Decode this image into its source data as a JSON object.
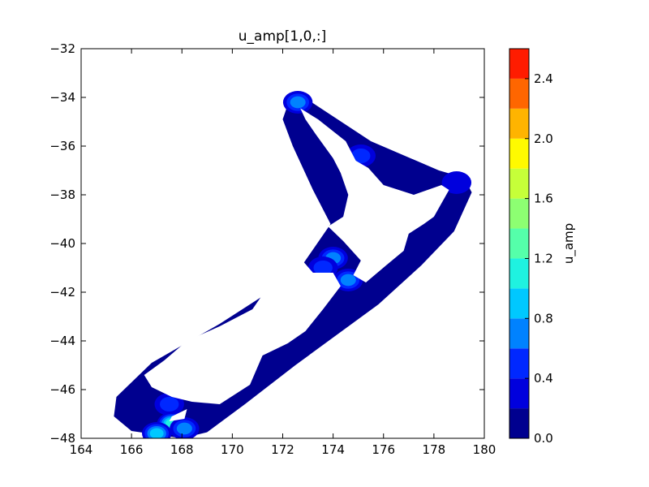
{
  "chart_data": {
    "type": "heatmap",
    "title": "u_amp[1,0,:]",
    "xlabel": "",
    "ylabel": "",
    "xlim": [
      164,
      180
    ],
    "ylim": [
      -48,
      -32
    ],
    "xticks": [
      164,
      166,
      168,
      170,
      172,
      174,
      176,
      178,
      180
    ],
    "xtick_labels": [
      "164",
      "166",
      "168",
      "170",
      "172",
      "174",
      "176",
      "178",
      "180"
    ],
    "yticks": [
      -48,
      -46,
      -44,
      -42,
      -40,
      -38,
      -36,
      -34,
      -32
    ],
    "ytick_labels": [
      "−48",
      "−46",
      "−44",
      "−42",
      "−40",
      "−38",
      "−36",
      "−34",
      "−32"
    ],
    "grid": false,
    "colorbar": {
      "label": "u_amp",
      "range": [
        0.0,
        2.6
      ],
      "levels": [
        0.0,
        0.2,
        0.4,
        0.6,
        0.8,
        1.0,
        1.2,
        1.4,
        1.6,
        1.8,
        2.0,
        2.2,
        2.4,
        2.6
      ],
      "colors": [
        "#00008f",
        "#0000dd",
        "#0028ff",
        "#0082ff",
        "#00c8ff",
        "#1ff2e0",
        "#55ffaa",
        "#8dff72",
        "#c6ff39",
        "#fffa00",
        "#ffb400",
        "#ff6600",
        "#ff1c00",
        "#a80000"
      ],
      "ticks": [
        0.0,
        0.4,
        0.8,
        1.2,
        1.6,
        2.0,
        2.4
      ],
      "tick_labels": [
        "0.0",
        "0.4",
        "0.8",
        "1.2",
        "1.6",
        "2.0",
        "2.4"
      ]
    },
    "domain_outline": [
      [
        172.2,
        -34.3
      ],
      [
        172.5,
        -34.05
      ],
      [
        173.0,
        -34.1
      ],
      [
        175.5,
        -35.8
      ],
      [
        178.2,
        -37.0
      ],
      [
        179.2,
        -37.3
      ],
      [
        179.5,
        -37.9
      ],
      [
        178.8,
        -39.5
      ],
      [
        177.5,
        -40.9
      ],
      [
        175.8,
        -42.5
      ],
      [
        172.5,
        -45.0
      ],
      [
        170.5,
        -46.6
      ],
      [
        169.0,
        -47.75
      ],
      [
        168.0,
        -48.0
      ],
      [
        166.0,
        -47.7
      ],
      [
        165.3,
        -47.1
      ],
      [
        165.4,
        -46.3
      ],
      [
        166.8,
        -44.9
      ],
      [
        169.5,
        -43.3
      ],
      [
        172.5,
        -41.3
      ],
      [
        173.9,
        -39.2
      ],
      [
        173.2,
        -37.8
      ],
      [
        172.4,
        -36.0
      ],
      [
        172.0,
        -34.9
      ]
    ],
    "land_north_island": [
      [
        172.7,
        -34.45
      ],
      [
        173.4,
        -34.9
      ],
      [
        174.5,
        -35.8
      ],
      [
        174.9,
        -36.6
      ],
      [
        175.4,
        -36.9
      ],
      [
        176.0,
        -37.6
      ],
      [
        177.2,
        -38.0
      ],
      [
        178.3,
        -37.6
      ],
      [
        178.6,
        -37.8
      ],
      [
        178.0,
        -38.9
      ],
      [
        177.6,
        -39.2
      ],
      [
        177.0,
        -39.6
      ],
      [
        176.8,
        -40.3
      ],
      [
        176.1,
        -40.9
      ],
      [
        175.3,
        -41.6
      ],
      [
        174.8,
        -41.3
      ],
      [
        175.1,
        -40.7
      ],
      [
        174.4,
        -39.9
      ],
      [
        173.8,
        -39.3
      ],
      [
        174.4,
        -38.9
      ],
      [
        174.6,
        -38.0
      ],
      [
        174.3,
        -37.1
      ],
      [
        174.0,
        -36.5
      ],
      [
        173.3,
        -35.5
      ],
      [
        172.9,
        -34.9
      ]
    ],
    "land_south_island": [
      [
        172.7,
        -40.6
      ],
      [
        173.2,
        -41.2
      ],
      [
        174.0,
        -41.2
      ],
      [
        174.3,
        -41.75
      ],
      [
        173.6,
        -42.7
      ],
      [
        172.9,
        -43.6
      ],
      [
        172.2,
        -44.1
      ],
      [
        171.2,
        -44.6
      ],
      [
        170.7,
        -45.8
      ],
      [
        169.5,
        -46.6
      ],
      [
        168.4,
        -46.5
      ],
      [
        167.6,
        -46.3
      ],
      [
        166.8,
        -45.9
      ],
      [
        166.5,
        -45.4
      ],
      [
        167.3,
        -44.8
      ],
      [
        168.2,
        -44.0
      ],
      [
        169.5,
        -43.4
      ],
      [
        170.8,
        -42.7
      ],
      [
        171.4,
        -41.8
      ],
      [
        172.1,
        -40.9
      ]
    ],
    "land_stewart_island": [
      [
        167.6,
        -47.1
      ],
      [
        168.2,
        -46.8
      ],
      [
        168.1,
        -47.2
      ],
      [
        167.5,
        -47.3
      ]
    ],
    "hotspots": [
      {
        "lon": 172.6,
        "lat": -34.2,
        "value": 0.6
      },
      {
        "lon": 175.1,
        "lat": -36.4,
        "value": 0.4
      },
      {
        "lon": 174.0,
        "lat": -40.6,
        "value": 0.7
      },
      {
        "lon": 174.6,
        "lat": -41.5,
        "value": 0.7
      },
      {
        "lon": 173.6,
        "lat": -41.0,
        "value": 0.4
      },
      {
        "lon": 178.9,
        "lat": -37.5,
        "value": 0.3
      },
      {
        "lon": 167.5,
        "lat": -46.6,
        "value": 0.5
      },
      {
        "lon": 167.6,
        "lat": -47.4,
        "value": 1.0
      },
      {
        "lon": 167.0,
        "lat": -47.8,
        "value": 0.8
      },
      {
        "lon": 168.1,
        "lat": -47.6,
        "value": 0.6
      }
    ]
  }
}
